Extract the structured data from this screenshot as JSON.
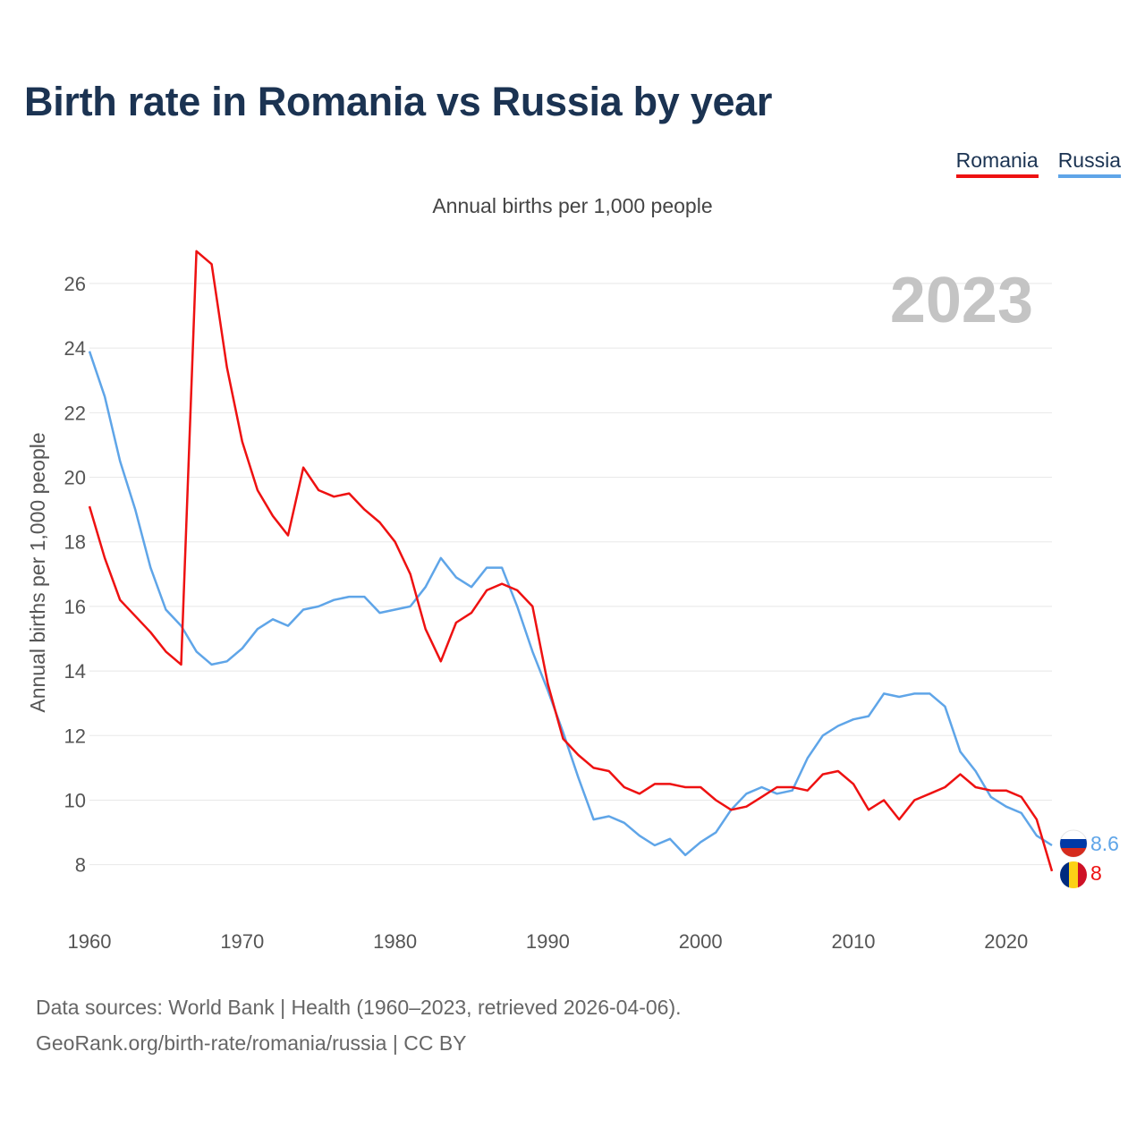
{
  "title": "Birth rate in Romania vs Russia by year",
  "subtitle": "Annual births per 1,000 people",
  "footer": {
    "line1": "Data sources: World Bank | Health (1960–2023, retrieved 2026-04-06).",
    "line2": "GeoRank.org/birth-rate/romania/russia | CC BY"
  },
  "chart_data": {
    "type": "line",
    "title": "Birth rate in Romania vs Russia by year",
    "ylabel": "Annual births per 1,000 people",
    "xlabel": "",
    "year_label": "2023",
    "xlim": [
      1960,
      2023
    ],
    "ylim": [
      6.8,
      27.3
    ],
    "x_ticks": [
      1960,
      1970,
      1980,
      1990,
      2000,
      2010,
      2020
    ],
    "y_ticks": [
      8,
      10,
      12,
      14,
      16,
      18,
      20,
      22,
      24,
      26
    ],
    "grid": true,
    "legend": "top-right",
    "x": [
      1960,
      1961,
      1962,
      1963,
      1964,
      1965,
      1966,
      1967,
      1968,
      1969,
      1970,
      1971,
      1972,
      1973,
      1974,
      1975,
      1976,
      1977,
      1978,
      1979,
      1980,
      1981,
      1982,
      1983,
      1984,
      1985,
      1986,
      1987,
      1988,
      1989,
      1990,
      1991,
      1992,
      1993,
      1994,
      1995,
      1996,
      1997,
      1998,
      1999,
      2000,
      2001,
      2002,
      2003,
      2004,
      2005,
      2006,
      2007,
      2008,
      2009,
      2010,
      2011,
      2012,
      2013,
      2014,
      2015,
      2016,
      2017,
      2018,
      2019,
      2020,
      2021,
      2022,
      2023
    ],
    "series": [
      {
        "name": "Romania",
        "color": "#ee1111",
        "end_label": "8",
        "values": [
          19.1,
          17.5,
          16.2,
          15.7,
          15.2,
          14.6,
          14.2,
          27.0,
          26.6,
          23.4,
          21.1,
          19.6,
          18.8,
          18.2,
          20.3,
          19.6,
          19.4,
          19.5,
          19.0,
          18.6,
          18.0,
          17.0,
          15.3,
          14.3,
          15.5,
          15.8,
          16.5,
          16.7,
          16.5,
          16.0,
          13.6,
          11.9,
          11.4,
          11.0,
          10.9,
          10.4,
          10.2,
          10.5,
          10.5,
          10.4,
          10.4,
          10.0,
          9.7,
          9.8,
          10.1,
          10.4,
          10.4,
          10.3,
          10.8,
          10.9,
          10.5,
          9.7,
          10.0,
          9.4,
          10.0,
          10.2,
          10.4,
          10.8,
          10.4,
          10.3,
          10.3,
          10.1,
          9.4,
          7.8
        ]
      },
      {
        "name": "Russia",
        "color": "#5fa5e8",
        "end_label": "8.6",
        "values": [
          23.9,
          22.5,
          20.5,
          19.0,
          17.2,
          15.9,
          15.4,
          14.6,
          14.2,
          14.3,
          14.7,
          15.3,
          15.6,
          15.4,
          15.9,
          16.0,
          16.2,
          16.3,
          16.3,
          15.8,
          15.9,
          16.0,
          16.6,
          17.5,
          16.9,
          16.6,
          17.2,
          17.2,
          16.0,
          14.6,
          13.4,
          12.1,
          10.7,
          9.4,
          9.5,
          9.3,
          8.9,
          8.6,
          8.8,
          8.3,
          8.7,
          9.0,
          9.7,
          10.2,
          10.4,
          10.2,
          10.3,
          11.3,
          12.0,
          12.3,
          12.5,
          12.6,
          13.3,
          13.2,
          13.3,
          13.3,
          12.9,
          11.5,
          10.9,
          10.1,
          9.8,
          9.6,
          8.9,
          8.6
        ]
      }
    ]
  }
}
